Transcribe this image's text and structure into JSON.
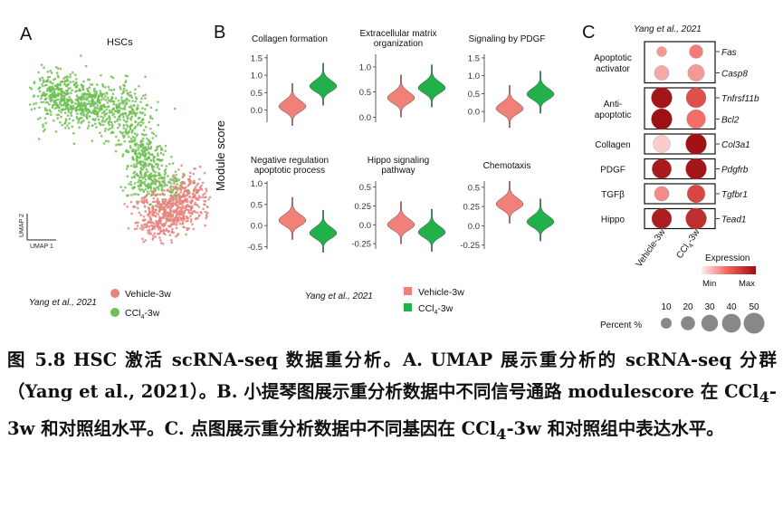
{
  "figure": {
    "panel_a": {
      "letter": "A",
      "title": "HSCs",
      "axis_y": "UMAP 2",
      "axis_x": "UMAP 1",
      "citation": "Yang et al., 2021",
      "legend": [
        {
          "label": "Vehicle-3w",
          "color": "#e8837c"
        },
        {
          "label": "CCl4-3w",
          "color": "#6fbf52"
        }
      ]
    },
    "panel_b": {
      "letter": "B",
      "ylabel": "Module score",
      "citation": "Yang et al., 2021",
      "colors": {
        "vehicle": "#f08078",
        "ccl4": "#22b04b"
      },
      "legend": [
        {
          "label": "Vehicle-3w",
          "color": "#f08078"
        },
        {
          "label": "CCl4-3w",
          "color": "#22b04b"
        }
      ]
    },
    "panel_c": {
      "letter": "C",
      "citation": "Yang et al., 2021",
      "expression_label": "Expression",
      "min_label": "Min",
      "max_label": "Max",
      "percent_label": "Percent %",
      "percent_values": [
        10,
        20,
        30,
        40,
        50
      ]
    }
  },
  "chart_data": [
    {
      "type": "violin",
      "panel": "B",
      "groups": [
        "Vehicle-3w",
        "CCl4-3w"
      ],
      "plots": [
        {
          "title": "Collagen formation",
          "yticks": [
            0.0,
            0.5,
            1.0,
            1.5
          ],
          "ylim": [
            -0.35,
            1.6
          ],
          "median": [
            0.1,
            0.68
          ]
        },
        {
          "title": "Extracellular matrix organization",
          "yticks": [
            0.0,
            0.5,
            1.0
          ],
          "ylim": [
            -0.1,
            1.25
          ],
          "median": [
            0.38,
            0.58
          ]
        },
        {
          "title": "Signaling by PDGF",
          "yticks": [
            0.0,
            0.5,
            1.0,
            1.5
          ],
          "ylim": [
            -0.3,
            1.6
          ],
          "median": [
            0.08,
            0.48
          ]
        },
        {
          "title": "Negative regulation apoptotic process",
          "yticks": [
            -0.5,
            0.0,
            0.5,
            1.0
          ],
          "ylim": [
            -0.55,
            1.05
          ],
          "median": [
            0.12,
            -0.18
          ]
        },
        {
          "title": "Hippo signaling pathway",
          "yticks": [
            -0.25,
            0.0,
            0.25,
            0.5
          ],
          "ylim": [
            -0.32,
            0.58
          ],
          "median": [
            0.0,
            -0.1
          ]
        },
        {
          "title": "Chemotaxis",
          "yticks": [
            -0.25,
            0.0,
            0.25,
            0.5
          ],
          "ylim": [
            -0.3,
            0.58
          ],
          "median": [
            0.28,
            0.05
          ]
        }
      ]
    },
    {
      "type": "dotplot",
      "panel": "C",
      "columns": [
        "Vehicle-3w",
        "CCl4-3w"
      ],
      "column_labels": [
        "Vehicle-3w",
        "CCl4-3w"
      ],
      "groups": [
        "Apoptotic activator",
        "Anti-apoptotic",
        "Collagen",
        "PDGF",
        "TGFβ",
        "Hippo"
      ],
      "genes": [
        "Fas",
        "Casp8",
        "Tnfrsf11b",
        "Bcl2",
        "Col3a1",
        "Pdgfrb",
        "Tgfbr1",
        "Tead1"
      ],
      "gene_group": [
        0,
        0,
        1,
        1,
        2,
        3,
        4,
        5
      ],
      "expression": [
        [
          0.3,
          0.4
        ],
        [
          0.25,
          0.3
        ],
        [
          0.95,
          0.6
        ],
        [
          0.98,
          0.45
        ],
        [
          0.12,
          0.97
        ],
        [
          0.92,
          0.95
        ],
        [
          0.35,
          0.65
        ],
        [
          0.9,
          0.8
        ]
      ],
      "percent": [
        [
          8,
          18
        ],
        [
          22,
          30
        ],
        [
          50,
          45
        ],
        [
          50,
          40
        ],
        [
          32,
          50
        ],
        [
          42,
          50
        ],
        [
          22,
          35
        ],
        [
          45,
          50
        ]
      ]
    }
  ],
  "caption": {
    "p1_pre": "图 5.8 HSC 激活 scRNA-seq 数据重分析。A. UMAP 展示重分析的 scRNA-seq 分群（Yang et al., 2021）。B. 小提琴图展示重分析数据中不同信号通路 modulescore 在 CCl",
    "p1_sub1": "4",
    "p1_mid": "-3w 和对照组水平。C. 点图展示重分析数据中不同基因在 CCl",
    "p1_sub2": "4",
    "p1_post": "-3w 和对照组中表达水平。"
  }
}
